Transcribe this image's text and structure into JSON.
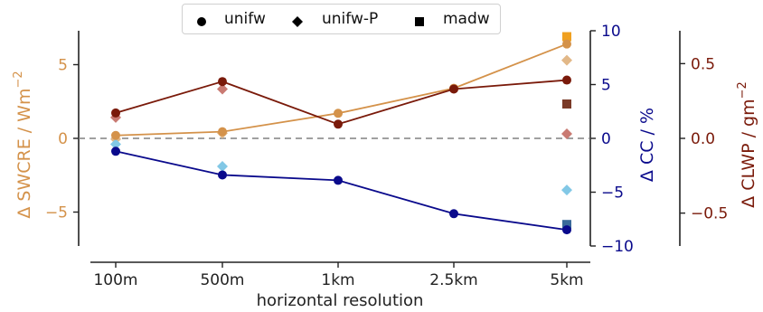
{
  "chart_data": {
    "type": "line",
    "xlabel": "horizontal resolution",
    "categories": [
      "100m",
      "500m",
      "1km",
      "2.5km",
      "5km"
    ],
    "legend": [
      {
        "marker": "circle",
        "label": "unifw"
      },
      {
        "marker": "diamond",
        "label": "unifw-P"
      },
      {
        "marker": "square",
        "label": "madw"
      }
    ],
    "legend_position": "top-center",
    "axes": {
      "swcre": {
        "label": "Δ SWCRE / Wm",
        "label_exponent": "−2",
        "color": "#d4924a",
        "ylim": [
          -7.3,
          7.3
        ],
        "ticks": [
          -5,
          0,
          5
        ],
        "tick_labels": [
          "−5",
          "0",
          "5"
        ]
      },
      "cc": {
        "label": "Δ CC / %",
        "color": "#0a0a8c",
        "ylim": [
          -10,
          10
        ],
        "ticks": [
          -10,
          -5,
          0,
          5,
          10
        ],
        "tick_labels": [
          "−10",
          "−5",
          "0",
          "5",
          "10"
        ]
      },
      "clwp": {
        "label": "Δ CLWP / gm",
        "label_exponent": "−2",
        "color": "#7a1a0a",
        "ylim": [
          -0.72,
          0.72
        ],
        "ticks": [
          -0.5,
          0.0,
          0.5
        ],
        "tick_labels": [
          "−0.5",
          "0.0",
          "0.5"
        ]
      }
    },
    "zero_line": {
      "y": 0,
      "style": "dashed",
      "color": "#808080"
    },
    "series": [
      {
        "name": "unifw",
        "axis": "swcre",
        "marker": "circle",
        "line": true,
        "color": "#d4924a",
        "values": [
          0.2,
          0.45,
          1.7,
          3.4,
          6.4
        ]
      },
      {
        "name": "unifw",
        "axis": "clwp",
        "marker": "circle",
        "line": true,
        "color": "#7a1a0a",
        "values": [
          0.17,
          0.38,
          0.095,
          0.33,
          0.39
        ]
      },
      {
        "name": "unifw",
        "axis": "cc",
        "marker": "circle",
        "line": true,
        "color": "#0a0a8c",
        "values": [
          -1.2,
          -3.4,
          -3.9,
          -7.0,
          -8.5
        ]
      },
      {
        "name": "unifw-P",
        "axis": "swcre",
        "marker": "diamond",
        "line": false,
        "color": "#e2b888",
        "x": [
          "100m",
          "500m",
          "5km"
        ],
        "values": [
          -0.05,
          0.35,
          5.3
        ]
      },
      {
        "name": "unifw-P",
        "axis": "clwp",
        "marker": "diamond",
        "line": false,
        "color": "#c97a72",
        "x": [
          "100m",
          "500m",
          "5km"
        ],
        "values": [
          0.14,
          0.33,
          0.03
        ]
      },
      {
        "name": "unifw-P",
        "axis": "cc",
        "marker": "diamond",
        "line": false,
        "color": "#82c8e6",
        "x": [
          "100m",
          "500m",
          "5km"
        ],
        "values": [
          -0.55,
          -2.6,
          -4.8
        ]
      },
      {
        "name": "madw",
        "axis": "swcre",
        "marker": "square",
        "line": false,
        "color": "#f0a020",
        "x": [
          "5km"
        ],
        "values": [
          6.9
        ]
      },
      {
        "name": "madw",
        "axis": "clwp",
        "marker": "square",
        "line": false,
        "color": "#7a3a28",
        "x": [
          "5km"
        ],
        "values": [
          0.23
        ]
      },
      {
        "name": "madw",
        "axis": "cc",
        "marker": "square",
        "line": false,
        "color": "#3a6a9a",
        "x": [
          "5km"
        ],
        "values": [
          -8.0
        ]
      }
    ]
  }
}
